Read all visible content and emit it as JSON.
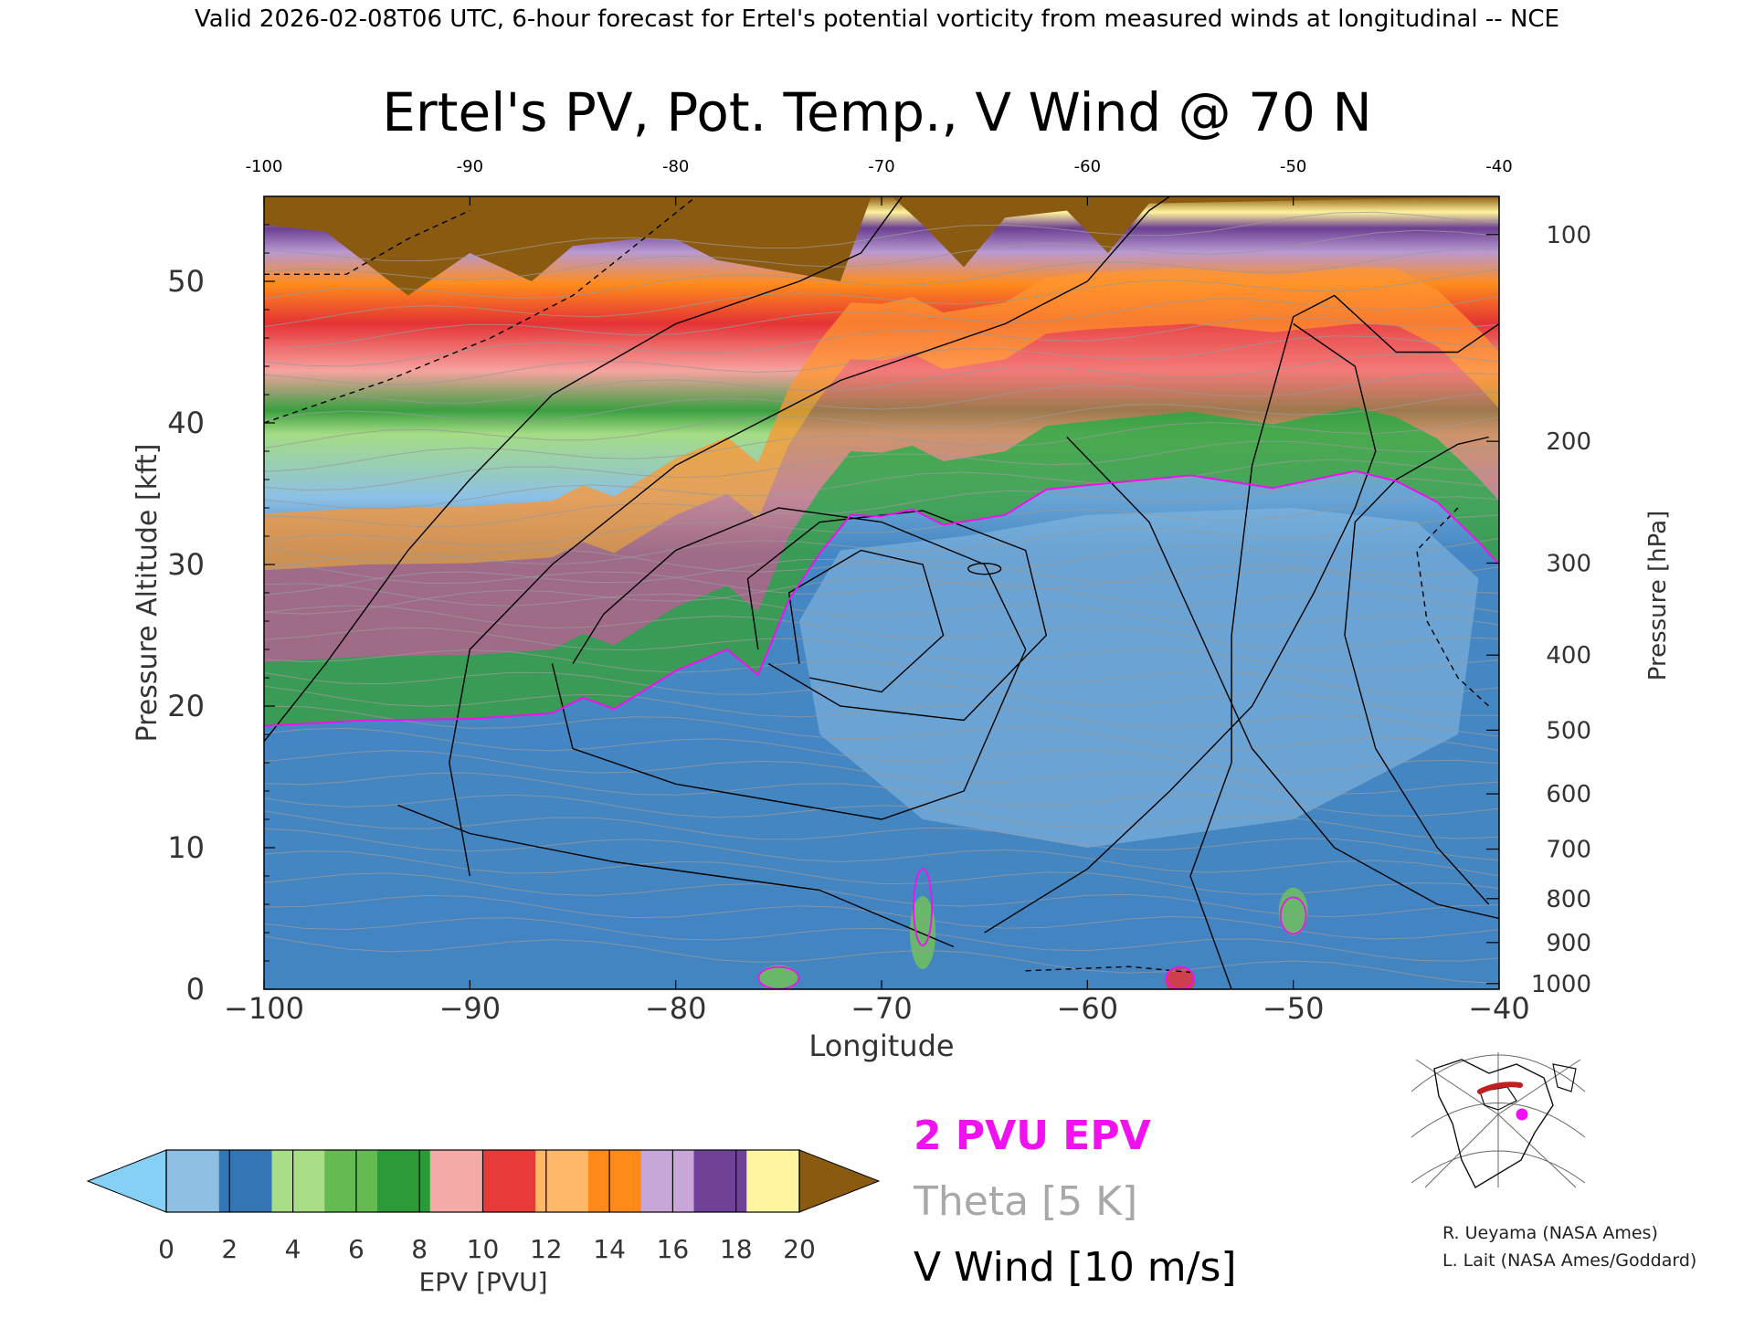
{
  "header": "Valid 2026-02-08T06 UTC, 6-hour forecast for Ertel's potential vorticity from measured winds at longitudinal -- NCE",
  "chart_data": {
    "type": "heatmap",
    "title": "Ertel's PV, Pot. Temp., V Wind @ 70 N",
    "xlabel": "Longitude",
    "ylabel": "Pressure Altitude [kft]",
    "y2label": "Pressure [hPa]",
    "xlim": [
      -100,
      -40
    ],
    "ylim": [
      0,
      56
    ],
    "x_ticks": [
      -100,
      -90,
      -80,
      -70,
      -60,
      -50,
      -40
    ],
    "x_tick_labels": [
      "−100",
      "−90",
      "−80",
      "−70",
      "−60",
      "−50",
      "−40"
    ],
    "x_top_tick_labels": [
      "-100",
      "-90",
      "-80",
      "-70",
      "-60",
      "-50",
      "-40"
    ],
    "y_ticks": [
      0,
      10,
      20,
      30,
      40,
      50
    ],
    "y_tick_labels": [
      "0",
      "10",
      "20",
      "30",
      "40",
      "50"
    ],
    "pressure_ticks": [
      {
        "hpa": 1000,
        "kft": 0.4
      },
      {
        "hpa": 900,
        "kft": 3.3
      },
      {
        "hpa": 800,
        "kft": 6.4
      },
      {
        "hpa": 700,
        "kft": 9.9
      },
      {
        "hpa": 600,
        "kft": 13.8
      },
      {
        "hpa": 500,
        "kft": 18.3
      },
      {
        "hpa": 400,
        "kft": 23.6
      },
      {
        "hpa": 300,
        "kft": 30.1
      },
      {
        "hpa": 200,
        "kft": 38.7
      },
      {
        "hpa": 100,
        "kft": 53.3
      }
    ],
    "pv_tropopause_kft": [
      [
        -100,
        18.6
      ],
      [
        -95,
        19.0
      ],
      [
        -90,
        19.1
      ],
      [
        -86,
        19.5
      ],
      [
        -84.5,
        20.6
      ],
      [
        -83,
        19.8
      ],
      [
        -80,
        22.5
      ],
      [
        -77.5,
        24.0
      ],
      [
        -76,
        22.2
      ],
      [
        -74.5,
        27.5
      ],
      [
        -73,
        30.8
      ],
      [
        -71.5,
        33.5
      ],
      [
        -70,
        33.4
      ],
      [
        -68.5,
        33.9
      ],
      [
        -67,
        32.8
      ],
      [
        -64,
        33.5
      ],
      [
        -62,
        35.3
      ],
      [
        -60,
        35.6
      ],
      [
        -55,
        36.3
      ],
      [
        -51,
        35.4
      ],
      [
        -47,
        36.6
      ],
      [
        -45,
        35.9
      ],
      [
        -43,
        34.4
      ],
      [
        -41,
        31.6
      ],
      [
        -40,
        30.0
      ]
    ],
    "colorbar": {
      "label": "EPV [PVU]",
      "ticks": [
        "0",
        "2",
        "4",
        "6",
        "8",
        "10",
        "12",
        "14",
        "16",
        "18",
        "20"
      ],
      "colors": [
        "#86cff5",
        "#8fbfe3",
        "#3476b4",
        "#a9de86",
        "#63bb52",
        "#2d9a3a",
        "#f4aaa6",
        "#e93a3a",
        "#ffb86a",
        "#ff8a1a",
        "#c8a6d8",
        "#6f4197",
        "#fff4a0",
        "#8a5a10"
      ]
    },
    "legend": [
      {
        "text": "2 PVU EPV",
        "color": "#f010f0"
      },
      {
        "text": "Theta [5 K]",
        "color": "#a8a8a8"
      },
      {
        "text": "V Wind [10 m/s]",
        "color": "#000000"
      }
    ],
    "credits": [
      "R. Ueyama (NASA Ames)",
      "L. Lait (NASA Ames/Goddard)"
    ]
  }
}
